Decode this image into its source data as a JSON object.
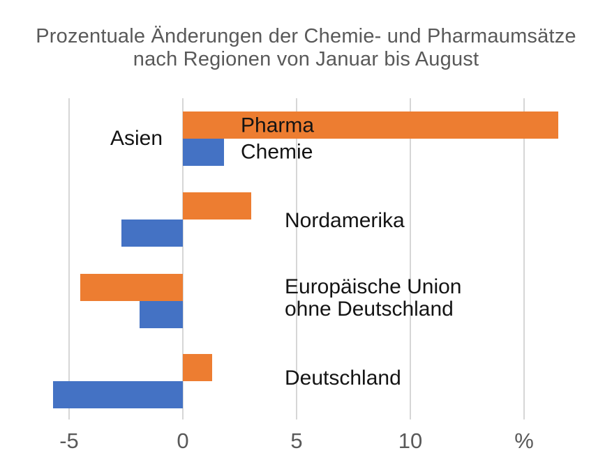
{
  "title": {
    "text": "Prozentuale Änderungen der Chemie- und Pharmaumsätze\nnach Regionen von Januar bis August"
  },
  "chart_data": {
    "type": "bar",
    "orientation": "horizontal",
    "title": "Prozentuale Änderungen der Chemie- und Pharmaumsätze nach Regionen von Januar bis August",
    "unit": "%",
    "categories": [
      "Asien",
      "Nordamerika",
      "Europäische Union ohne Deutschland",
      "Deutschland"
    ],
    "category_display": [
      "Asien",
      "Nordamerika",
      "Europäische Union\nohne Deutschland",
      "Deutschland"
    ],
    "series": [
      {
        "name": "Pharma",
        "color": "#ED7D31",
        "values": [
          16.5,
          3.0,
          -4.5,
          1.3
        ]
      },
      {
        "name": "Chemie",
        "color": "#4472C4",
        "values": [
          1.8,
          -2.7,
          -1.9,
          -5.7
        ]
      }
    ],
    "x_axis": {
      "tick_values": [
        -5,
        0,
        5,
        10,
        15
      ],
      "tick_labels": [
        "-5",
        "0",
        "5",
        "10",
        "%"
      ],
      "range": [
        -7,
        18.5
      ],
      "grid": true
    },
    "legend_position": "inline-first-group",
    "ylabel": "",
    "xlabel": ""
  },
  "colors": {
    "pharma": "#ED7D31",
    "chemie": "#4472C4",
    "grid": "#D6D6D6",
    "axis_text": "#595959",
    "title_text": "#595959",
    "label_text": "#141414",
    "background": "#FFFFFF"
  }
}
